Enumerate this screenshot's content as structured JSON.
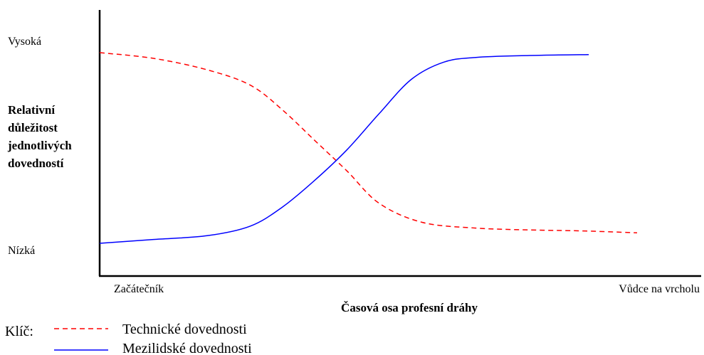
{
  "chart_data": {
    "type": "line",
    "xlabel": "Časová osa profesní dráhy",
    "ylabel_lines": [
      "Relativní",
      "důležitost",
      "jednotlivých",
      "dovedností"
    ],
    "x_tick_labels": [
      "Začátečník",
      "Vůdce na vrcholu"
    ],
    "y_tick_labels": [
      "Vysoká",
      "Nízká"
    ],
    "xlim": [
      0,
      100
    ],
    "ylim": [
      0,
      100
    ],
    "grid": false,
    "legend": {
      "placement": "bottom-left",
      "key_label": "Klíč:"
    },
    "series": [
      {
        "name": "Technické dovednosti",
        "color": "#ff0000",
        "style": "dashed",
        "x": [
          0,
          10,
          20,
          28,
          34,
          40,
          46,
          52,
          60,
          70,
          80,
          90,
          100
        ],
        "y": [
          100,
          97,
          91,
          83,
          70,
          54,
          38,
          21,
          11,
          8,
          7,
          6.5,
          5.5
        ]
      },
      {
        "name": "Mezilidské dovednosti",
        "color": "#0000ff",
        "style": "solid",
        "x": [
          0,
          10,
          20,
          28,
          34,
          40,
          46,
          52,
          58,
          64,
          70,
          80,
          91
        ],
        "y": [
          0,
          2,
          4,
          9,
          19,
          33,
          49,
          68,
          86,
          95,
          97.5,
          98.5,
          99
        ]
      }
    ]
  }
}
